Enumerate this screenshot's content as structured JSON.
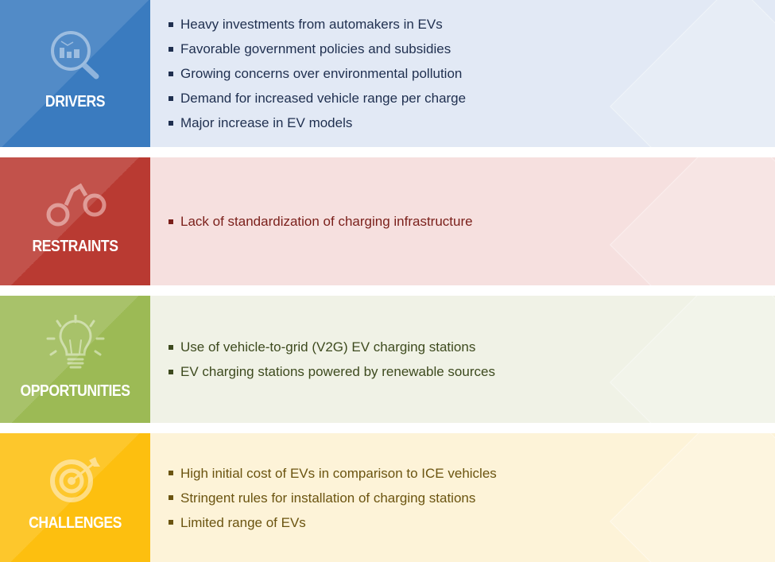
{
  "sections": [
    {
      "title": "DRIVERS",
      "icon": "magnifier-chart-icon",
      "color": "#3a7bbf",
      "bg": "#e2e9f5",
      "text": "#1f2f4f",
      "items": [
        "Heavy investments from automakers in EVs",
        "Favorable government policies and subsidies",
        "Growing concerns over environmental pollution",
        "Demand for increased vehicle range per charge",
        "Major increase in EV models"
      ]
    },
    {
      "title": "RESTRAINTS",
      "icon": "handcuffs-icon",
      "color": "#b93a32",
      "bg": "#f6e0df",
      "text": "#7a1f1a",
      "items": [
        "Lack of standardization of charging infrastructure"
      ]
    },
    {
      "title": "OPPORTUNITIES",
      "icon": "lightbulb-icon",
      "color": "#9cba55",
      "bg": "#f0f2e6",
      "text": "#3d4a1e",
      "items": [
        "Use of vehicle-to-grid (V2G) EV charging stations",
        "EV charging stations powered by renewable sources"
      ]
    },
    {
      "title": "CHALLENGES",
      "icon": "target-icon",
      "color": "#fdbf0f",
      "bg": "#fdf3d8",
      "text": "#6b5410",
      "items": [
        "High initial cost of EVs in comparison to ICE vehicles",
        "Stringent rules for installation of charging stations",
        "Limited range of EVs"
      ]
    }
  ]
}
